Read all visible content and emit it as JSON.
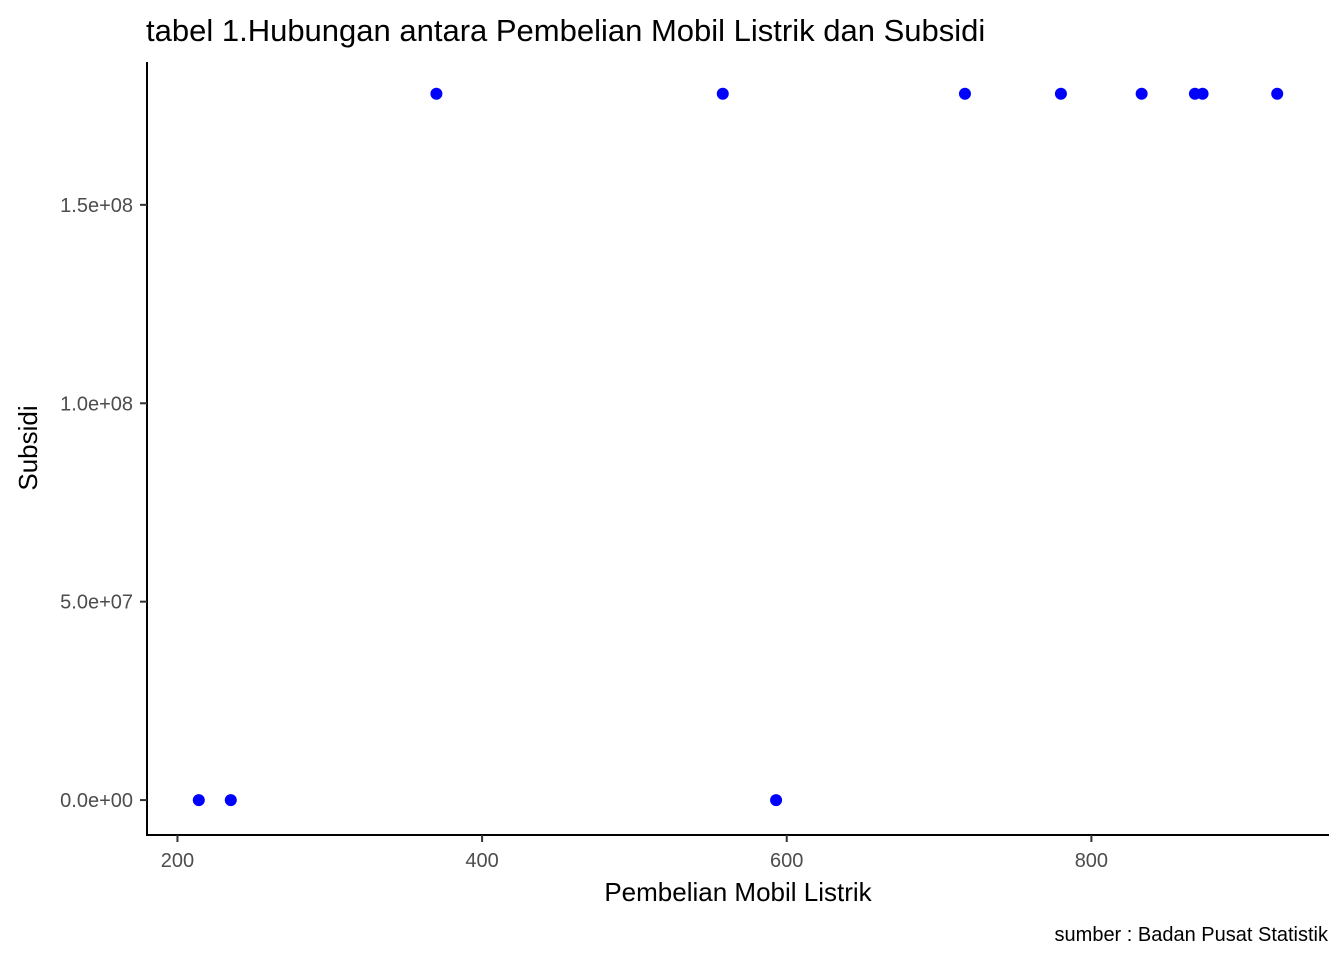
{
  "chart_data": {
    "type": "scatter",
    "title": "tabel 1.Hubungan antara Pembelian Mobil Listrik dan Subsidi",
    "xlabel": "Pembelian Mobil Listrik",
    "ylabel": "Subsidi",
    "caption": "sumber : Badan Pusat Statistik",
    "xlim": [
      180,
      956
    ],
    "ylim": [
      -8800000,
      186000000
    ],
    "xticks": [
      200,
      400,
      600,
      800
    ],
    "xtick_labels": [
      "200",
      "400",
      "600",
      "800"
    ],
    "yticks": [
      0,
      50000000,
      100000000,
      150000000
    ],
    "ytick_labels": [
      "0.0e+00",
      "5.0e+07",
      "1.0e+08",
      "1.5e+08"
    ],
    "grid": false,
    "point_color": "#0000ff",
    "points": [
      {
        "x": 214,
        "y": 0
      },
      {
        "x": 235,
        "y": 0
      },
      {
        "x": 370,
        "y": 178000000
      },
      {
        "x": 558,
        "y": 178000000
      },
      {
        "x": 593,
        "y": 0
      },
      {
        "x": 717,
        "y": 178000000
      },
      {
        "x": 780,
        "y": 178000000
      },
      {
        "x": 833,
        "y": 178000000
      },
      {
        "x": 868,
        "y": 178000000
      },
      {
        "x": 873,
        "y": 178000000
      },
      {
        "x": 922,
        "y": 178000000
      }
    ]
  }
}
